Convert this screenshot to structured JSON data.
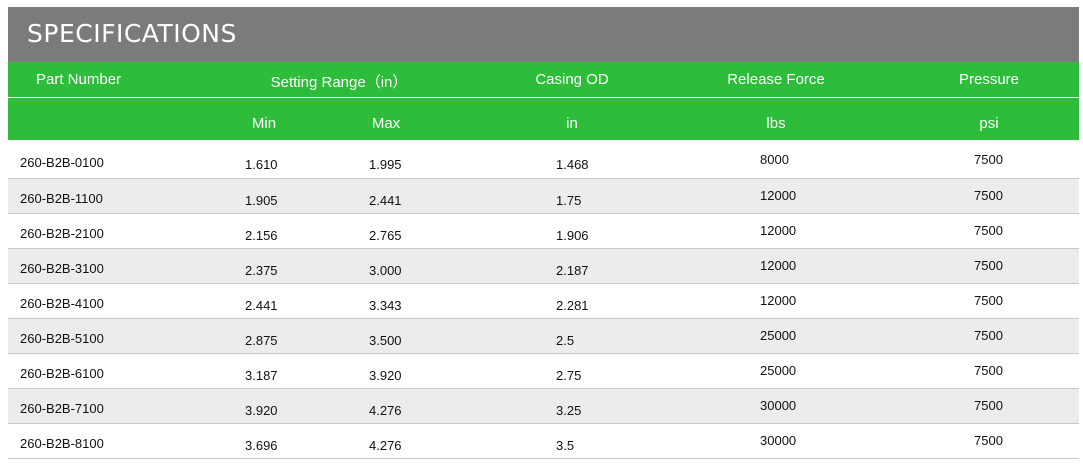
{
  "title": "SPECIFICATIONS",
  "header": {
    "part_number": "Part Number",
    "setting_range": "Setting Range（in）",
    "casing_od": "Casing OD",
    "release_force": "Release Force",
    "pressure": "Pressure",
    "min": "Min",
    "max": "Max",
    "casing_unit": "in",
    "force_unit": "lbs",
    "pressure_unit": "psi"
  },
  "rows": [
    {
      "part": "260-B2B-0100",
      "min": "1.610",
      "max": "1.995",
      "casing": "1.468",
      "force": "8000",
      "pressure": "7500"
    },
    {
      "part": "260-B2B-1100",
      "min": "1.905",
      "max": "2.441",
      "casing": "1.75",
      "force": "12000",
      "pressure": "7500"
    },
    {
      "part": "260-B2B-2100",
      "min": "2.156",
      "max": "2.765",
      "casing": "1.906",
      "force": "12000",
      "pressure": "7500"
    },
    {
      "part": "260-B2B-3100",
      "min": "2.375",
      "max": "3.000",
      "casing": "2.187",
      "force": "12000",
      "pressure": "7500"
    },
    {
      "part": "260-B2B-4100",
      "min": "2.441",
      "max": "3.343",
      "casing": "2.281",
      "force": "12000",
      "pressure": "7500"
    },
    {
      "part": "260-B2B-5100",
      "min": "2.875",
      "max": "3.500",
      "casing": "2.5",
      "force": "25000",
      "pressure": "7500"
    },
    {
      "part": "260-B2B-6100",
      "min": "3.187",
      "max": "3.920",
      "casing": "2.75",
      "force": "25000",
      "pressure": "7500"
    },
    {
      "part": "260-B2B-7100",
      "min": "3.920",
      "max": "4.276",
      "casing": "3.25",
      "force": "30000",
      "pressure": "7500"
    },
    {
      "part": "260-B2B-8100",
      "min": "3.696",
      "max": "4.276",
      "casing": "3.5",
      "force": "30000",
      "pressure": "7500"
    }
  ],
  "colors": {
    "title_bar": "#7b7b7b",
    "header_green": "#2ebd3b",
    "alt_row": "#ececec"
  }
}
